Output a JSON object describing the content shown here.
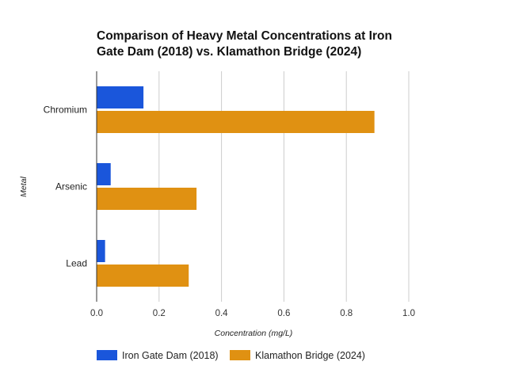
{
  "chart_data": {
    "type": "bar",
    "orientation": "horizontal",
    "title": "Comparison of Heavy Metal Concentrations at Iron Gate Dam (2018) vs. Klamathon Bridge (2024)",
    "title_lines": [
      "Comparison of Heavy Metal Concentrations at Iron",
      "Gate Dam (2018) vs. Klamathon Bridge (2024)"
    ],
    "xlabel": "Concentration (mg/L)",
    "ylabel": "Metal",
    "categories": [
      "Chromium",
      "Arsenic",
      "Lead"
    ],
    "xlim": [
      0,
      1.0
    ],
    "x_ticks": [
      "0.0",
      "0.2",
      "0.4",
      "0.6",
      "0.8",
      "1.0"
    ],
    "x_tick_values": [
      0,
      0.2,
      0.4,
      0.6,
      0.8,
      1.0
    ],
    "grid": true,
    "legend_position": "bottom",
    "series": [
      {
        "name": "Iron Gate Dam (2018)",
        "color": "#1a56db",
        "values": [
          0.15,
          0.045,
          0.027
        ]
      },
      {
        "name": "Klamathon Bridge (2024)",
        "color": "#e09112",
        "values": [
          0.89,
          0.32,
          0.295
        ]
      }
    ]
  }
}
